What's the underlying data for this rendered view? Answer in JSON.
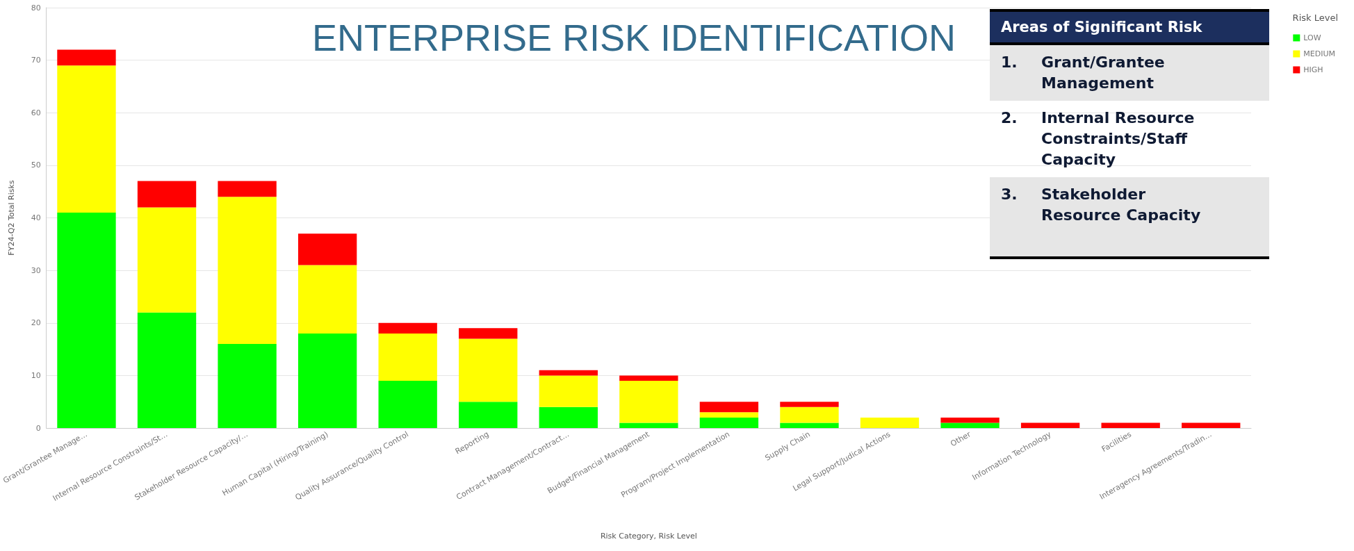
{
  "chart_data": {
    "type": "bar",
    "title": "ENTERPRISE RISK IDENTIFICATION",
    "xlabel": "Risk Category, Risk Level",
    "ylabel": "FY24-Q2 Total Risks",
    "legend_title": "Risk Level",
    "stacked": true,
    "categories": [
      "Grant/Grantee Manage…",
      "Internal Resource Constraints/St…",
      "Stakeholder Resource Capacity/…",
      "Human Capital (Hiring/Training)",
      "Quality Assurance/Quality Control",
      "Reporting",
      "Contract Management/Contract…",
      "Budget/Financial Management",
      "Program/Project Implementation",
      "Supply Chain",
      "Legal Support/Judical Actions",
      "Other",
      "Information Technology",
      "Facilities",
      "Interagency Agreements/Tradin…"
    ],
    "series": [
      {
        "name": "LOW",
        "color": "#00ff00",
        "values": [
          41,
          22,
          16,
          18,
          9,
          5,
          4,
          1,
          2,
          1,
          null,
          1,
          null,
          null,
          null
        ]
      },
      {
        "name": "MEDIUM",
        "color": "#ffff00",
        "values": [
          28,
          20,
          28,
          13,
          9,
          12,
          6,
          8,
          1,
          3,
          2,
          null,
          null,
          null,
          null
        ]
      },
      {
        "name": "HIGH",
        "color": "#ff0000",
        "values": [
          3,
          5,
          3,
          6,
          2,
          2,
          1,
          1,
          2,
          1,
          null,
          1,
          1,
          1,
          1
        ]
      }
    ],
    "ylim": [
      0,
      80
    ],
    "yticks": [
      0,
      10,
      20,
      30,
      40,
      50,
      60,
      70,
      80
    ],
    "grid": "y",
    "legend": "top right",
    "annotations": [
      "Areas of Significant Risk",
      "1. Grant/Grantee Management",
      "2. Internal Resource Constraints/Staff Capacity",
      "3. Stakeholder Resource Capacity"
    ]
  }
}
